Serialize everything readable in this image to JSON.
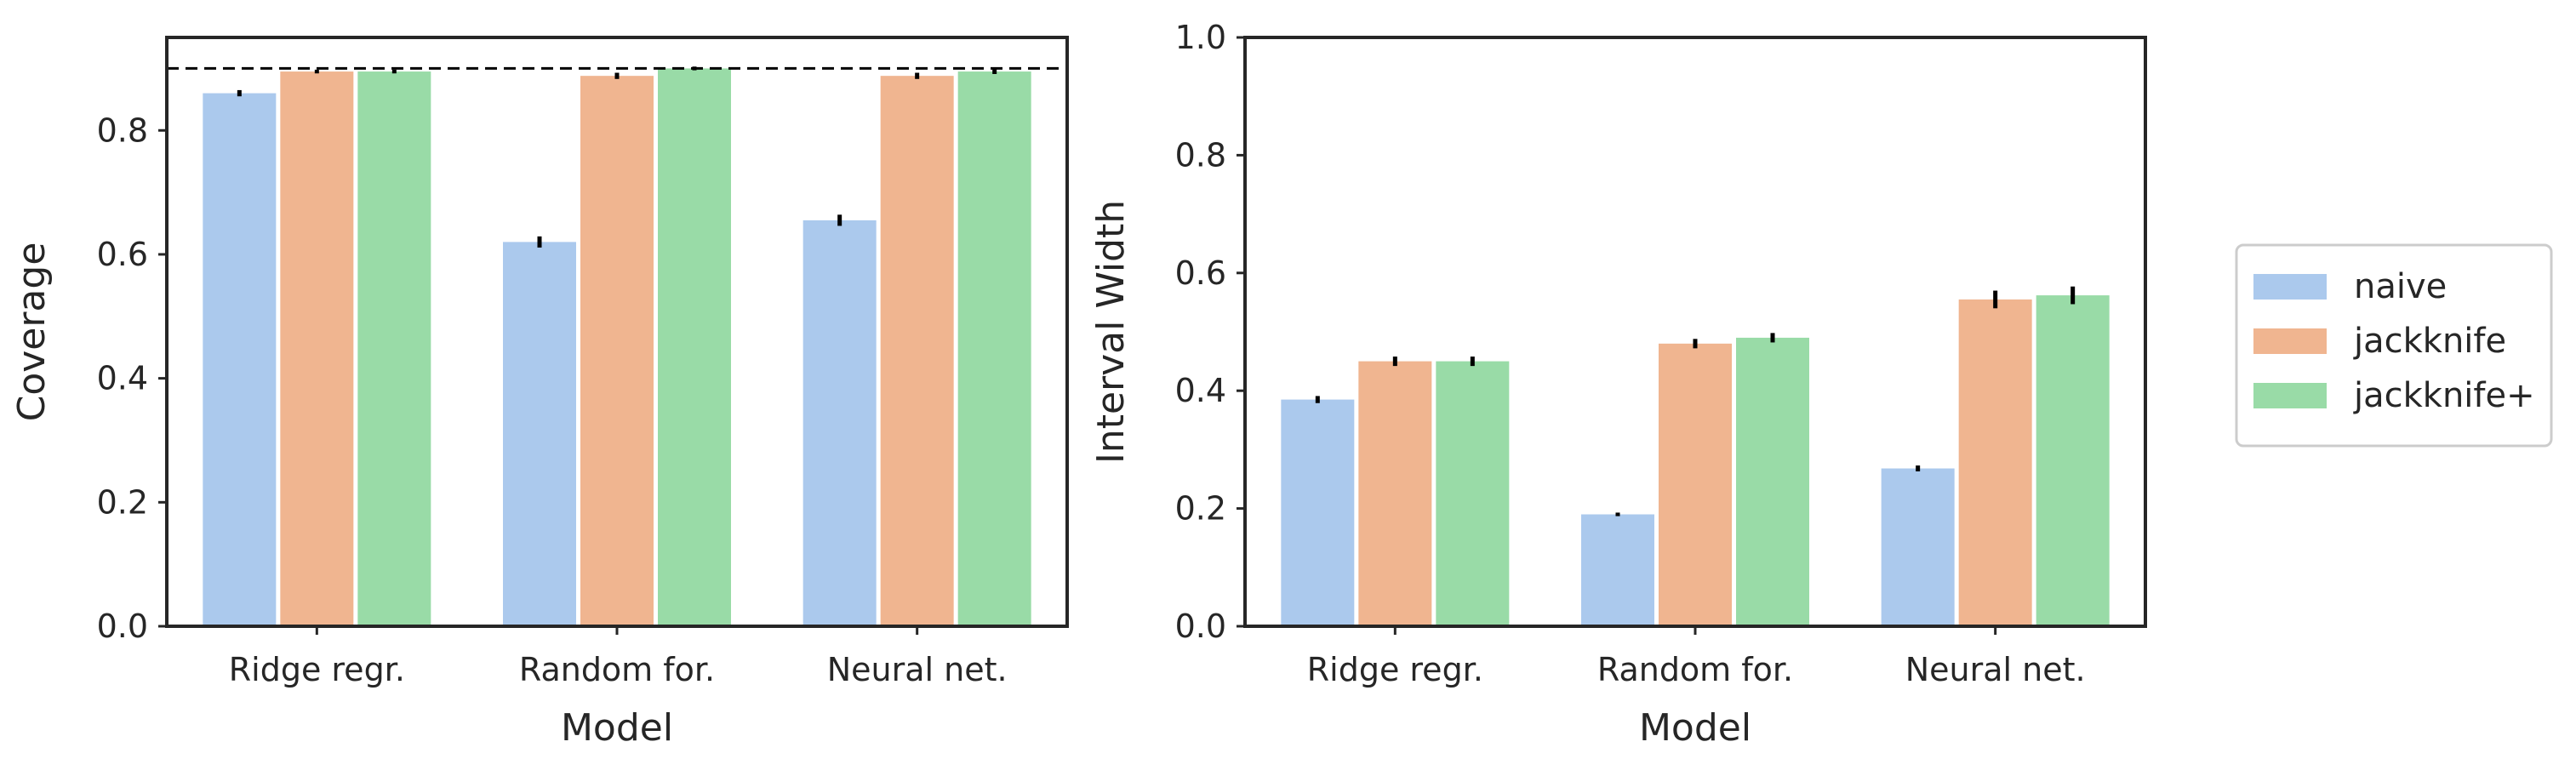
{
  "chart_data": [
    {
      "type": "bar",
      "categories": [
        "Ridge regr.",
        "Random for.",
        "Neural net."
      ],
      "xlabel": "Model",
      "ylabel": "Coverage",
      "ylim": [
        0,
        0.95
      ],
      "yticks": [
        "0.0",
        "0.2",
        "0.4",
        "0.6",
        "0.8"
      ],
      "reference_line": 0.9,
      "series": [
        {
          "name": "naive",
          "color": "#abc9ed",
          "values": [
            0.86,
            0.62,
            0.655
          ],
          "errors": [
            0.005,
            0.009,
            0.009
          ]
        },
        {
          "name": "jackknife",
          "color": "#f0b590",
          "values": [
            0.895,
            0.888,
            0.888
          ],
          "errors": [
            0.003,
            0.005,
            0.005
          ]
        },
        {
          "name": "jackknife+",
          "color": "#99dba7",
          "values": [
            0.895,
            0.9,
            0.895
          ],
          "errors": [
            0.003,
            0.003,
            0.004
          ]
        }
      ]
    },
    {
      "type": "bar",
      "categories": [
        "Ridge regr.",
        "Random for.",
        "Neural net."
      ],
      "xlabel": "Model",
      "ylabel": "Interval Width",
      "ylim": [
        0,
        1.0
      ],
      "yticks": [
        "0.0",
        "0.2",
        "0.4",
        "0.6",
        "0.8",
        "1.0"
      ],
      "series": [
        {
          "name": "naive",
          "color": "#abc9ed",
          "values": [
            0.385,
            0.19,
            0.268
          ],
          "errors": [
            0.006,
            0.003,
            0.005
          ]
        },
        {
          "name": "jackknife",
          "color": "#f0b590",
          "values": [
            0.45,
            0.48,
            0.555
          ],
          "errors": [
            0.008,
            0.008,
            0.015
          ]
        },
        {
          "name": "jackknife+",
          "color": "#99dba7",
          "values": [
            0.45,
            0.49,
            0.562
          ],
          "errors": [
            0.008,
            0.008,
            0.015
          ]
        }
      ]
    }
  ],
  "legend": {
    "position": "right",
    "entries": [
      {
        "label": "naive",
        "color": "#abc9ed"
      },
      {
        "label": "jackknife",
        "color": "#f0b590"
      },
      {
        "label": "jackknife+",
        "color": "#99dba7"
      }
    ]
  }
}
